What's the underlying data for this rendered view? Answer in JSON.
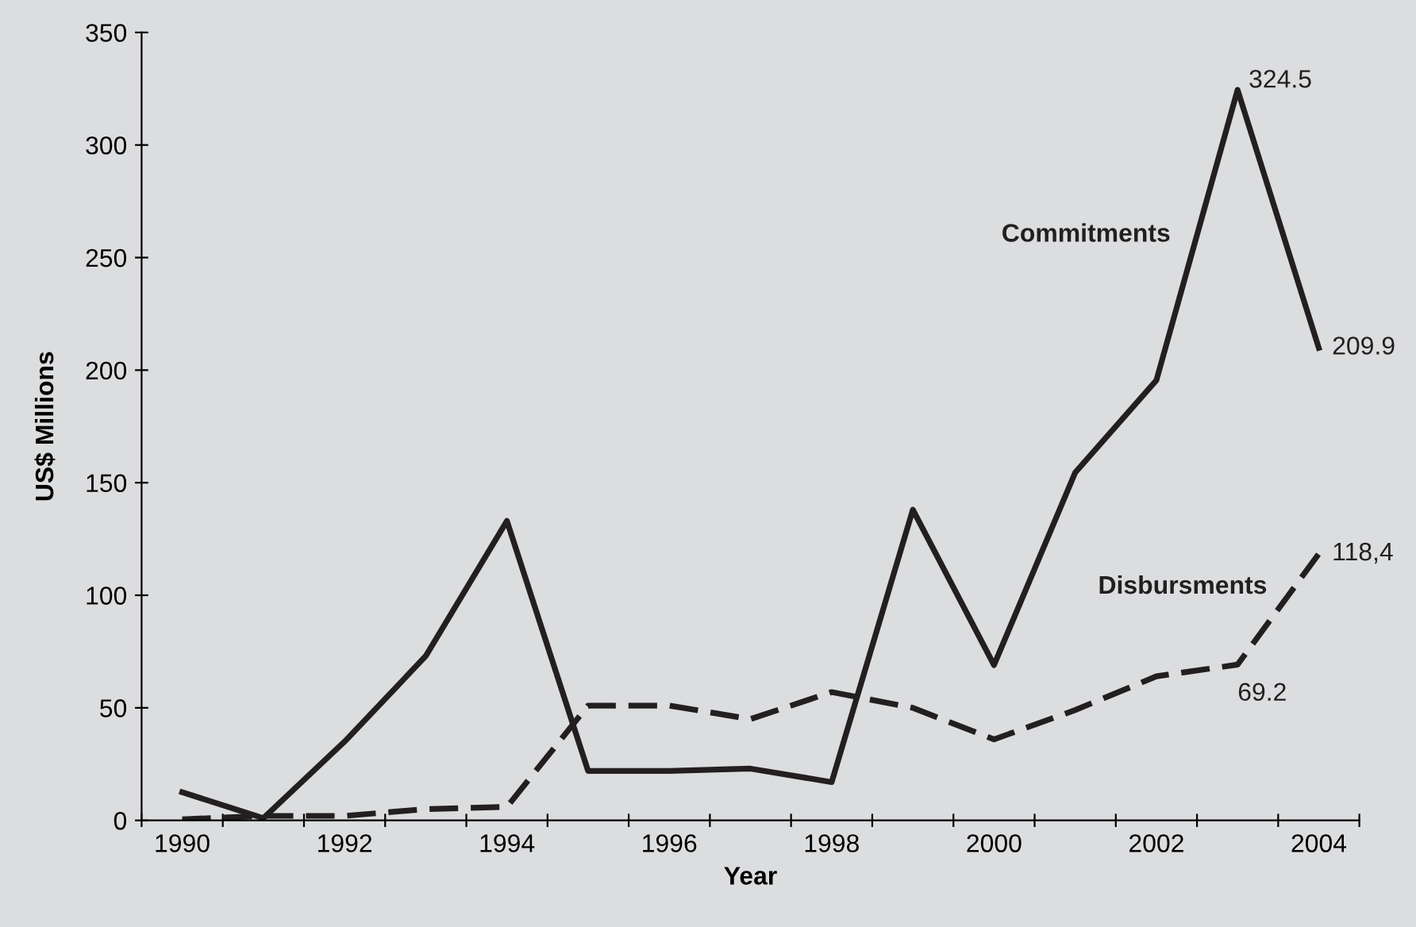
{
  "chart_data": {
    "type": "line",
    "xlabel": "Year",
    "ylabel": "US$ Millions",
    "categories": [
      "1990",
      null,
      "1992",
      null,
      "1994",
      null,
      "1996",
      null,
      "1998",
      null,
      "2000",
      null,
      "2002",
      null,
      "2004"
    ],
    "series": [
      {
        "name": "Commitments",
        "color": "#231f20",
        "line_style": "solid",
        "values": [
          12.5,
          1,
          35,
          73,
          133,
          22,
          22,
          23,
          17,
          138,
          69,
          154.5,
          195.5,
          324.5,
          209.9
        ],
        "value_labels": [
          null,
          null,
          null,
          null,
          null,
          null,
          null,
          null,
          null,
          null,
          null,
          null,
          null,
          "324.5",
          "209.9"
        ]
      },
      {
        "name": "Disbursments",
        "color": "#231f20",
        "line_style": "dashed",
        "values": [
          0.5,
          2,
          2,
          5,
          6,
          51,
          51,
          45,
          57,
          50,
          36,
          49,
          64,
          69.2,
          118.4
        ],
        "value_labels": [
          null,
          null,
          null,
          null,
          null,
          null,
          null,
          null,
          null,
          null,
          null,
          null,
          null,
          "69.2",
          "118,4"
        ]
      }
    ],
    "ylim": [
      0,
      350
    ],
    "yticks": [
      0,
      50,
      100,
      150,
      200,
      250,
      300,
      350
    ],
    "grid": false,
    "legend": false,
    "marker": "none"
  }
}
